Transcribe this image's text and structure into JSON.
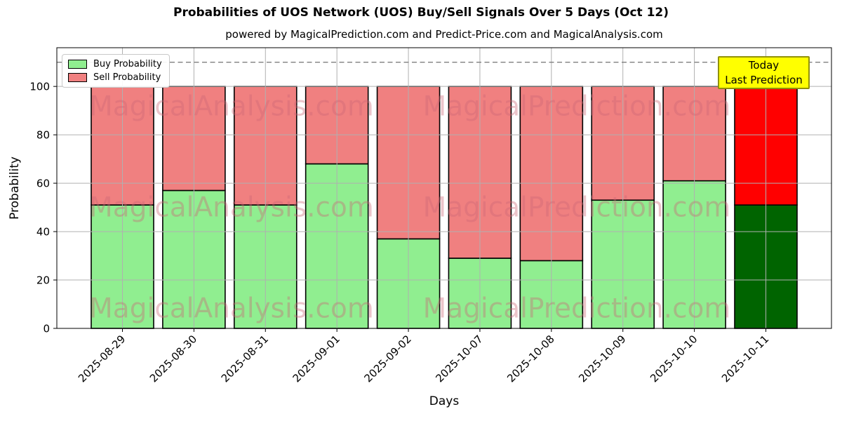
{
  "title": "Probabilities of UOS Network (UOS) Buy/Sell Signals Over 5 Days (Oct 12)",
  "subtitle": "powered by MagicalPrediction.com and Predict-Price.com and MagicalAnalysis.com",
  "legend": {
    "items": [
      {
        "label": "Buy Probability",
        "color": "#90EE90"
      },
      {
        "label": "Sell Probability",
        "color": "#F08080"
      }
    ]
  },
  "annotation": {
    "lines": [
      "Today",
      "Last Prediction"
    ],
    "bg_color": "#ffff00"
  },
  "watermarks": {
    "left_text": "MagicalAnalysis.com",
    "right_text": "MagicalPrediction.com"
  },
  "chart_data": {
    "type": "bar",
    "stacked": true,
    "title": "Probabilities of UOS Network (UOS) Buy/Sell Signals Over 5 Days (Oct 12)",
    "categories": [
      "2025-08-29",
      "2025-08-30",
      "2025-08-31",
      "2025-09-01",
      "2025-09-02",
      "2025-10-07",
      "2025-10-08",
      "2025-10-09",
      "2025-10-10",
      "2025-10-11"
    ],
    "series": [
      {
        "name": "Buy Probability",
        "color": "#90EE90",
        "values": [
          51,
          57,
          51,
          68,
          37,
          29,
          28,
          53,
          61,
          51
        ]
      },
      {
        "name": "Sell Probability",
        "color": "#F08080",
        "values": [
          49,
          43,
          49,
          32,
          63,
          71,
          72,
          47,
          39,
          49
        ]
      }
    ],
    "last_bar_colors": {
      "buy": "#006400",
      "sell": "#FF0000"
    },
    "xlabel": "Days",
    "ylabel": "Probability",
    "yticks": [
      0,
      20,
      40,
      60,
      80,
      100
    ],
    "ylim": [
      0,
      116
    ],
    "reference_line": {
      "y": 110,
      "style": "dashed",
      "color": "#808080"
    },
    "grid": true,
    "bar_edge_color": "#000000",
    "grid_color": "#b0b0b0",
    "legend_position": "upper left",
    "annotation_position": "upper right"
  }
}
